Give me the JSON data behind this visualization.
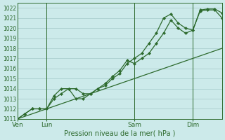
{
  "title": "Pression niveau de la mer( hPa )",
  "background_color": "#cceaea",
  "grid_color": "#aacece",
  "line_color": "#2d6a2d",
  "ylim": [
    1011,
    1022.5
  ],
  "yticks": [
    1011,
    1012,
    1013,
    1014,
    1015,
    1016,
    1017,
    1018,
    1019,
    1020,
    1021,
    1022
  ],
  "xlim": [
    0,
    168
  ],
  "day_positions": [
    0,
    24,
    96,
    144
  ],
  "day_labels": [
    "Ven",
    "Lun",
    "Sam",
    "Dim"
  ],
  "series1_x": [
    0,
    6,
    12,
    18,
    24,
    30,
    36,
    42,
    48,
    54,
    60,
    66,
    72,
    78,
    84,
    90,
    96,
    102,
    108,
    114,
    120,
    126,
    132,
    138,
    144,
    150,
    156,
    162,
    168
  ],
  "series1_y": [
    1011.0,
    1011.5,
    1012.0,
    1012.0,
    1012.0,
    1013.3,
    1014.0,
    1014.0,
    1013.0,
    1013.0,
    1013.5,
    1014.0,
    1014.3,
    1015.0,
    1015.5,
    1016.5,
    1017.0,
    1017.5,
    1018.5,
    1019.5,
    1021.0,
    1021.4,
    1020.5,
    1020.0,
    1019.8,
    1021.7,
    1021.8,
    1021.8,
    1021.0
  ],
  "series2_x": [
    0,
    6,
    12,
    18,
    24,
    30,
    36,
    42,
    48,
    54,
    60,
    66,
    72,
    78,
    84,
    90,
    96,
    102,
    108,
    114,
    120,
    126,
    132,
    138,
    144,
    150,
    156,
    162,
    168
  ],
  "series2_y": [
    1011.0,
    1011.5,
    1012.0,
    1012.0,
    1012.0,
    1013.0,
    1013.5,
    1014.0,
    1014.0,
    1013.5,
    1013.5,
    1014.0,
    1014.5,
    1015.2,
    1015.8,
    1016.8,
    1016.5,
    1017.0,
    1017.5,
    1018.5,
    1019.5,
    1020.8,
    1020.0,
    1019.5,
    1019.8,
    1021.8,
    1021.9,
    1021.9,
    1021.5
  ],
  "series3_x": [
    0,
    168
  ],
  "series3_y": [
    1011.0,
    1018.0
  ]
}
